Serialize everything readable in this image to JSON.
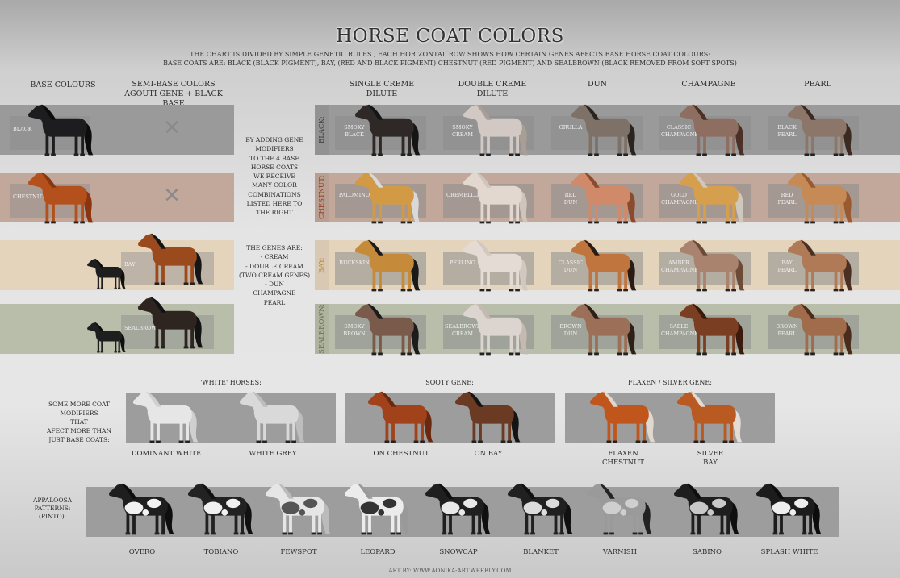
{
  "title": "HORSE COAT COLORS",
  "subtitle": [
    "THE CHART IS DIVIDED BY SIMPLE GENETIC RULES , EACH HORIZONTAL ROW SHOWS HOW CERTAIN  GENES AFECTS BASE HORSE COAT  COLOURS:",
    "BASE COATS ARE: BLACK (BLACK PIGMENT), BAY, (RED AND BLACK PIGMENT) CHESTNUT (RED PIGMENT) AND SEALBROWN (BLACK REMOVED FROM SOFT SPOTS)"
  ],
  "headers": {
    "base": "BASE COLOURS",
    "semi1": "SEMI-BASE COLORS",
    "semi2": "AGOUTI GENE + BLACK BASE",
    "single1": "SINGLE CREME",
    "single2": "DILUTE",
    "double1": "DOUBLE CREME",
    "double2": "DILUTE",
    "dun": "DUN",
    "champagne": "CHAMPAGNE",
    "pearl": "PEARL"
  },
  "base": [
    {
      "label": "BLACK",
      "coat": "#1d1d1f",
      "mane": "#0c0c0c",
      "band": "#9a9a9a"
    },
    {
      "label": "CHESTNUT",
      "coat": "#b4501c",
      "mane": "#8a3510",
      "band": "#c2a89a"
    },
    {
      "label": "BAY",
      "coat": "#9a4a1c",
      "mane": "#151515",
      "band": "#e5d4bc"
    },
    {
      "label": "SEALBROWN",
      "coat": "#2e2420",
      "mane": "#121212",
      "band": "#b8bea9"
    }
  ],
  "middle_text": {
    "p1": [
      "BY ADDING GENE",
      "MODIFIERS",
      "TO THE 4 BASE",
      "HORSE COATS",
      "WE RECEIVE",
      "MANY COLOR",
      "COMBINATIONS",
      "LISTED HERE TO",
      "THE RIGHT"
    ],
    "p2": [
      "THE GENES ARE:",
      "- CREAM",
      "- DOUBLE CREAM",
      "(TWO CREAM GENES)",
      "- DUN",
      "CHAMPAGNE",
      "PEARL"
    ]
  },
  "rows": [
    {
      "name": "BLACK:",
      "color": "#3a3a3a",
      "cells": [
        {
          "l1": "SMOKY",
          "l2": "BLACK",
          "coat": "#2e2826",
          "mane": "#151515"
        },
        {
          "l1": "SMOKY",
          "l2": "CREAM",
          "coat": "#d3c9c4",
          "mane": "#a99e96"
        },
        {
          "l1": "GRULLA",
          "l2": "",
          "coat": "#7e7167",
          "mane": "#2a2420"
        },
        {
          "l1": "CLASSIC",
          "l2": "CHAMPAGNE",
          "coat": "#8f6e62",
          "mane": "#4a3026"
        },
        {
          "l1": "BLACK",
          "l2": "PEARL",
          "coat": "#8c766a",
          "mane": "#3b2a22"
        }
      ]
    },
    {
      "name": "CHESTNUT:",
      "color": "#8a3e20",
      "cells": [
        {
          "l1": "PALOMINO",
          "l2": "",
          "coat": "#d39a45",
          "mane": "#d9d9d9"
        },
        {
          "l1": "CREMELLO",
          "l2": "",
          "coat": "#e2d8d0",
          "mane": "#cfc5bb"
        },
        {
          "l1": "RED",
          "l2": "DUN",
          "coat": "#d08a6a",
          "mane": "#8a4a2e"
        },
        {
          "l1": "GOLD",
          "l2": "CHAMPAGNE",
          "coat": "#d59f4e",
          "mane": "#cfc8bc"
        },
        {
          "l1": "RED",
          "l2": "PEARL",
          "coat": "#c68a56",
          "mane": "#9a5a30"
        }
      ]
    },
    {
      "name": "BAY:",
      "color": "#b08a40",
      "cells": [
        {
          "l1": "BUCKSKIN",
          "l2": "",
          "coat": "#c58a3a",
          "mane": "#1a1a1a"
        },
        {
          "l1": "PERLINO",
          "l2": "",
          "coat": "#e4dcd4",
          "mane": "#d2c8bf"
        },
        {
          "l1": "CLASSIC",
          "l2": "DUN",
          "coat": "#c0743e",
          "mane": "#2a1c14"
        },
        {
          "l1": "AMBER",
          "l2": "CHAMPAGNE",
          "coat": "#a9836e",
          "mane": "#6b4a36"
        },
        {
          "l1": "BAY",
          "l2": "PEARL",
          "coat": "#b07a56",
          "mane": "#4a3022"
        }
      ]
    },
    {
      "name": "SEALBROWN:",
      "color": "#6b7050",
      "cells": [
        {
          "l1": "SMOKY",
          "l2": "BROWN",
          "coat": "#7a5a4a",
          "mane": "#1c1c1c"
        },
        {
          "l1": "SEALBROWN",
          "l2": "CREAM",
          "coat": "#dcd4cf",
          "mane": "#c4bab2"
        },
        {
          "l1": "BROWN",
          "l2": "DUN",
          "coat": "#9c7058",
          "mane": "#2e2018"
        },
        {
          "l1": "SABLE",
          "l2": "CHAMPAGNE",
          "coat": "#7a3e22",
          "mane": "#3a1a0c"
        },
        {
          "l1": "BROWN",
          "l2": "PEARL",
          "coat": "#a06c4c",
          "mane": "#4a2c1c"
        }
      ]
    }
  ],
  "modifiers": {
    "intro": [
      "SOME MORE COAT",
      "MODIFIERS",
      "THAT",
      "AFECT MORE THAN",
      "JUST BASE COATS:"
    ],
    "groups": [
      {
        "title": "'WHITE' HORSES:",
        "horses": [
          {
            "l1": "DOMINANT WHITE",
            "l2": "",
            "coat": "#e6e6e6",
            "mane": "#d0d0d0"
          },
          {
            "l1": "WHITE GREY",
            "l2": "",
            "coat": "#d9d9d9",
            "mane": "#bdbdbd"
          }
        ]
      },
      {
        "title": "SOOTY GENE:",
        "horses": [
          {
            "l1": "ON CHESTNUT",
            "l2": "",
            "coat": "#a2421a",
            "mane": "#6a2810"
          },
          {
            "l1": "ON BAY",
            "l2": "",
            "coat": "#6a3a22",
            "mane": "#141414"
          }
        ]
      },
      {
        "title": "FLAXEN / SILVER GENE:",
        "horses": [
          {
            "l1": "FLAXEN",
            "l2": "CHESTNUT",
            "coat": "#c0561c",
            "mane": "#e0d8cc"
          },
          {
            "l1": "SILVER",
            "l2": "BAY",
            "coat": "#b85a22",
            "mane": "#e2dcd4"
          }
        ]
      }
    ]
  },
  "appaloosa": {
    "label": [
      "APPALOOSA",
      "PATTERNS:",
      "(PINTO):"
    ],
    "items": [
      {
        "l1": "OVERO",
        "coat": "#1e1e1e",
        "mane": "#0e0e0e",
        "spot": "#f2f2f2"
      },
      {
        "l1": "TOBIANO",
        "coat": "#222",
        "mane": "#111",
        "spot": "#f0f0f0"
      },
      {
        "l1": "FEWSPOT",
        "coat": "#e6e6e6",
        "mane": "#bbb",
        "spot": "#555"
      },
      {
        "l1": "LEOPARD",
        "coat": "#ececec",
        "mane": "#999",
        "spot": "#333"
      },
      {
        "l1": "SNOWCAP",
        "coat": "#1f1f1f",
        "mane": "#0f0f0f",
        "spot": "#e8e8e8"
      },
      {
        "l1": "BLANKET",
        "coat": "#202020",
        "mane": "#101010",
        "spot": "#dcdcdc"
      },
      {
        "l1": "VARNISH",
        "coat": "#9a9a9a",
        "mane": "#222",
        "spot": "#cfcfcf"
      },
      {
        "l1": "SABINO",
        "coat": "#1e1e1e",
        "mane": "#0e0e0e",
        "spot": "#c8c8c8"
      },
      {
        "l1": "SPLASH WHITE",
        "coat": "#1c1c1c",
        "mane": "#0c0c0c",
        "spot": "#eeeeee"
      }
    ]
  },
  "footer": "ART BY:  WWW.AONIKA-ART.WEEBLY.COM"
}
